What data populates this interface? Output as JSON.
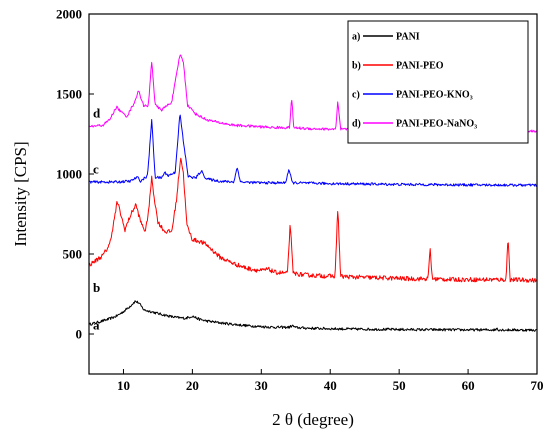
{
  "chart_data": {
    "type": "line",
    "title": "",
    "xlabel": "2 θ  (degree)",
    "ylabel": "Intensity [CPS]",
    "xlim": [
      5,
      70
    ],
    "ylim": [
      -250,
      2000
    ],
    "xticks": [
      10,
      20,
      30,
      40,
      50,
      60,
      70
    ],
    "yticks": [
      0,
      500,
      1000,
      1500,
      2000
    ],
    "grid": false,
    "legend_position": "top-right",
    "series": [
      {
        "name": "PANI",
        "legend_prefix": "a)",
        "curve_label": "a",
        "color": "#000000",
        "baseline": 25,
        "noise": 8,
        "points": [
          [
            5,
            60
          ],
          [
            6,
            70
          ],
          [
            7,
            82
          ],
          [
            8,
            95
          ],
          [
            9,
            112
          ],
          [
            10,
            140
          ],
          [
            11,
            175
          ],
          [
            11.7,
            205
          ],
          [
            12.2,
            195
          ],
          [
            13,
            150
          ],
          [
            14,
            140
          ],
          [
            15,
            128
          ],
          [
            16,
            118
          ],
          [
            17,
            108
          ],
          [
            18,
            102
          ],
          [
            19,
            98
          ],
          [
            20,
            112
          ],
          [
            21,
            92
          ],
          [
            22,
            82
          ],
          [
            24,
            70
          ],
          [
            26,
            60
          ],
          [
            28,
            52
          ],
          [
            30,
            46
          ],
          [
            32,
            42
          ],
          [
            34,
            42
          ],
          [
            34.5,
            52
          ],
          [
            35,
            40
          ],
          [
            37,
            36
          ],
          [
            40,
            33
          ],
          [
            45,
            30
          ],
          [
            50,
            28
          ],
          [
            55,
            27
          ],
          [
            60,
            26
          ],
          [
            64,
            26
          ],
          [
            64.2,
            38
          ],
          [
            64.4,
            26
          ],
          [
            70,
            24
          ]
        ]
      },
      {
        "name": "PANI-PEO",
        "legend_prefix": "b)",
        "curve_label": "b",
        "color": "#ff0000",
        "baseline": 330,
        "noise": 14,
        "points": [
          [
            5,
            430
          ],
          [
            7,
            490
          ],
          [
            8,
            560
          ],
          [
            8.6,
            700
          ],
          [
            9.1,
            830
          ],
          [
            9.6,
            750
          ],
          [
            10.2,
            650
          ],
          [
            11,
            740
          ],
          [
            11.8,
            810
          ],
          [
            12.5,
            700
          ],
          [
            13.2,
            640
          ],
          [
            13.7,
            790
          ],
          [
            14.1,
            980
          ],
          [
            14.5,
            840
          ],
          [
            15,
            700
          ],
          [
            16,
            640
          ],
          [
            17,
            640
          ],
          [
            17.7,
            840
          ],
          [
            18.3,
            1110
          ],
          [
            18.7,
            1000
          ],
          [
            19.2,
            680
          ],
          [
            20,
            590
          ],
          [
            21,
            580
          ],
          [
            22,
            560
          ],
          [
            24,
            480
          ],
          [
            26,
            440
          ],
          [
            28,
            410
          ],
          [
            30,
            395
          ],
          [
            31,
            405
          ],
          [
            32,
            385
          ],
          [
            33.8,
            380
          ],
          [
            34.2,
            700
          ],
          [
            34.6,
            380
          ],
          [
            36,
            370
          ],
          [
            38,
            365
          ],
          [
            40.7,
            360
          ],
          [
            41.1,
            790
          ],
          [
            41.5,
            360
          ],
          [
            44,
            355
          ],
          [
            48,
            350
          ],
          [
            52,
            345
          ],
          [
            54.2,
            345
          ],
          [
            54.5,
            535
          ],
          [
            54.8,
            345
          ],
          [
            58,
            340
          ],
          [
            60,
            340
          ],
          [
            62,
            340
          ],
          [
            65.5,
            340
          ],
          [
            65.8,
            610
          ],
          [
            66.1,
            340
          ],
          [
            70,
            335
          ]
        ]
      },
      {
        "name": "PANI-PEO-KNO₃",
        "legend_prefix": "c)",
        "curve_label": "c",
        "color": "#0000ff",
        "baseline": 928,
        "noise": 8,
        "points": [
          [
            5,
            950
          ],
          [
            9,
            950
          ],
          [
            11,
            955
          ],
          [
            12,
            980
          ],
          [
            12.5,
            955
          ],
          [
            13.5,
            990
          ],
          [
            14.1,
            1340
          ],
          [
            14.6,
            980
          ],
          [
            15.5,
            975
          ],
          [
            16,
            1010
          ],
          [
            16.5,
            990
          ],
          [
            17.5,
            1010
          ],
          [
            18.2,
            1380
          ],
          [
            18.7,
            1200
          ],
          [
            19.4,
            985
          ],
          [
            20.5,
            975
          ],
          [
            21.3,
            1020
          ],
          [
            22,
            970
          ],
          [
            24,
            955
          ],
          [
            26,
            950
          ],
          [
            26.5,
            1040
          ],
          [
            27,
            950
          ],
          [
            30,
            945
          ],
          [
            33.5,
            945
          ],
          [
            34,
            1030
          ],
          [
            34.5,
            945
          ],
          [
            40,
            940
          ],
          [
            50,
            935
          ],
          [
            60,
            932
          ],
          [
            70,
            930
          ]
        ]
      },
      {
        "name": "PANI-PEO-NaNO₃",
        "legend_prefix": "d)",
        "curve_label": "d",
        "color": "#ff00ff",
        "baseline": 1268,
        "noise": 8,
        "points": [
          [
            5,
            1295
          ],
          [
            7,
            1305
          ],
          [
            8,
            1340
          ],
          [
            9,
            1420
          ],
          [
            9.6,
            1390
          ],
          [
            10.5,
            1360
          ],
          [
            11.5,
            1440
          ],
          [
            12.2,
            1520
          ],
          [
            12.9,
            1430
          ],
          [
            13.6,
            1420
          ],
          [
            14.1,
            1710
          ],
          [
            14.6,
            1430
          ],
          [
            15.5,
            1400
          ],
          [
            17,
            1450
          ],
          [
            17.7,
            1620
          ],
          [
            18.2,
            1750
          ],
          [
            18.7,
            1700
          ],
          [
            19.3,
            1430
          ],
          [
            20.5,
            1375
          ],
          [
            22,
            1340
          ],
          [
            24,
            1320
          ],
          [
            26,
            1305
          ],
          [
            28,
            1300
          ],
          [
            30,
            1295
          ],
          [
            32,
            1290
          ],
          [
            34.1,
            1290
          ],
          [
            34.4,
            1480
          ],
          [
            34.7,
            1290
          ],
          [
            36,
            1285
          ],
          [
            38,
            1282
          ],
          [
            40.8,
            1280
          ],
          [
            41.1,
            1450
          ],
          [
            41.5,
            1280
          ],
          [
            45,
            1278
          ],
          [
            50,
            1275
          ],
          [
            54.3,
            1275
          ],
          [
            54.5,
            1300
          ],
          [
            54.8,
            1275
          ],
          [
            60,
            1272
          ],
          [
            62,
            1272
          ],
          [
            62.3,
            1300
          ],
          [
            62.6,
            1272
          ],
          [
            66,
            1270
          ],
          [
            66.2,
            1320
          ],
          [
            66.5,
            1270
          ],
          [
            70,
            1268
          ]
        ]
      }
    ]
  }
}
